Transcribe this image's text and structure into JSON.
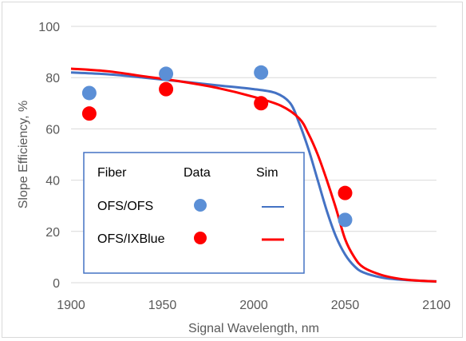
{
  "chart_data": {
    "type": "scatter",
    "xlabel": "Signal Wavelength, nm",
    "ylabel": "Slope Efficiency, %",
    "xlim": [
      1900,
      2100
    ],
    "ylim": [
      0,
      100
    ],
    "x_ticks": [
      "1900",
      "1950",
      "2000",
      "2050",
      "2100"
    ],
    "y_ticks": [
      "0",
      "20",
      "40",
      "60",
      "80",
      "100"
    ],
    "grid": "horizontal",
    "colors": {
      "blue": "#4472c4",
      "blue_marker": "#5b8fd6",
      "red": "#ff0000"
    },
    "legend": {
      "placement": "lower-left-inside",
      "headers": [
        "Fiber",
        "Data",
        "Sim"
      ],
      "rows": [
        {
          "label": "OFS/OFS",
          "color": "blue"
        },
        {
          "label": "OFS/IXBlue",
          "color": "red"
        }
      ]
    },
    "series": [
      {
        "name": "OFS/OFS",
        "kind": "points",
        "color": "blue_marker",
        "points": [
          [
            1910,
            74
          ],
          [
            1952,
            81.5
          ],
          [
            2004,
            82
          ],
          [
            2050,
            24.5
          ]
        ]
      },
      {
        "name": "OFS/IXBlue",
        "kind": "points",
        "color": "red",
        "points": [
          [
            1910,
            66
          ],
          [
            1952,
            75.5
          ],
          [
            2004,
            70
          ],
          [
            2050,
            35
          ]
        ]
      },
      {
        "name": "OFS/OFS",
        "kind": "line",
        "color": "blue",
        "points": [
          [
            1900,
            82
          ],
          [
            1920,
            81.3
          ],
          [
            1940,
            80
          ],
          [
            1960,
            78.5
          ],
          [
            1980,
            77
          ],
          [
            2000,
            75.5
          ],
          [
            2012,
            74
          ],
          [
            2020,
            70
          ],
          [
            2025,
            62
          ],
          [
            2030,
            52
          ],
          [
            2035,
            40
          ],
          [
            2040,
            28
          ],
          [
            2045,
            18
          ],
          [
            2050,
            11
          ],
          [
            2055,
            6.5
          ],
          [
            2060,
            4
          ],
          [
            2070,
            2
          ],
          [
            2080,
            1.2
          ],
          [
            2090,
            0.8
          ],
          [
            2100,
            0.5
          ]
        ]
      },
      {
        "name": "OFS/IXBlue",
        "kind": "line",
        "color": "red",
        "points": [
          [
            1900,
            83.5
          ],
          [
            1920,
            82.5
          ],
          [
            1940,
            80.5
          ],
          [
            1960,
            78.5
          ],
          [
            1980,
            76
          ],
          [
            2000,
            72.5
          ],
          [
            2015,
            69
          ],
          [
            2025,
            64
          ],
          [
            2030,
            58
          ],
          [
            2035,
            50
          ],
          [
            2040,
            40
          ],
          [
            2045,
            29
          ],
          [
            2050,
            17
          ],
          [
            2055,
            10
          ],
          [
            2060,
            6
          ],
          [
            2070,
            3
          ],
          [
            2080,
            1.5
          ],
          [
            2090,
            0.8
          ],
          [
            2100,
            0.5
          ]
        ]
      }
    ]
  }
}
